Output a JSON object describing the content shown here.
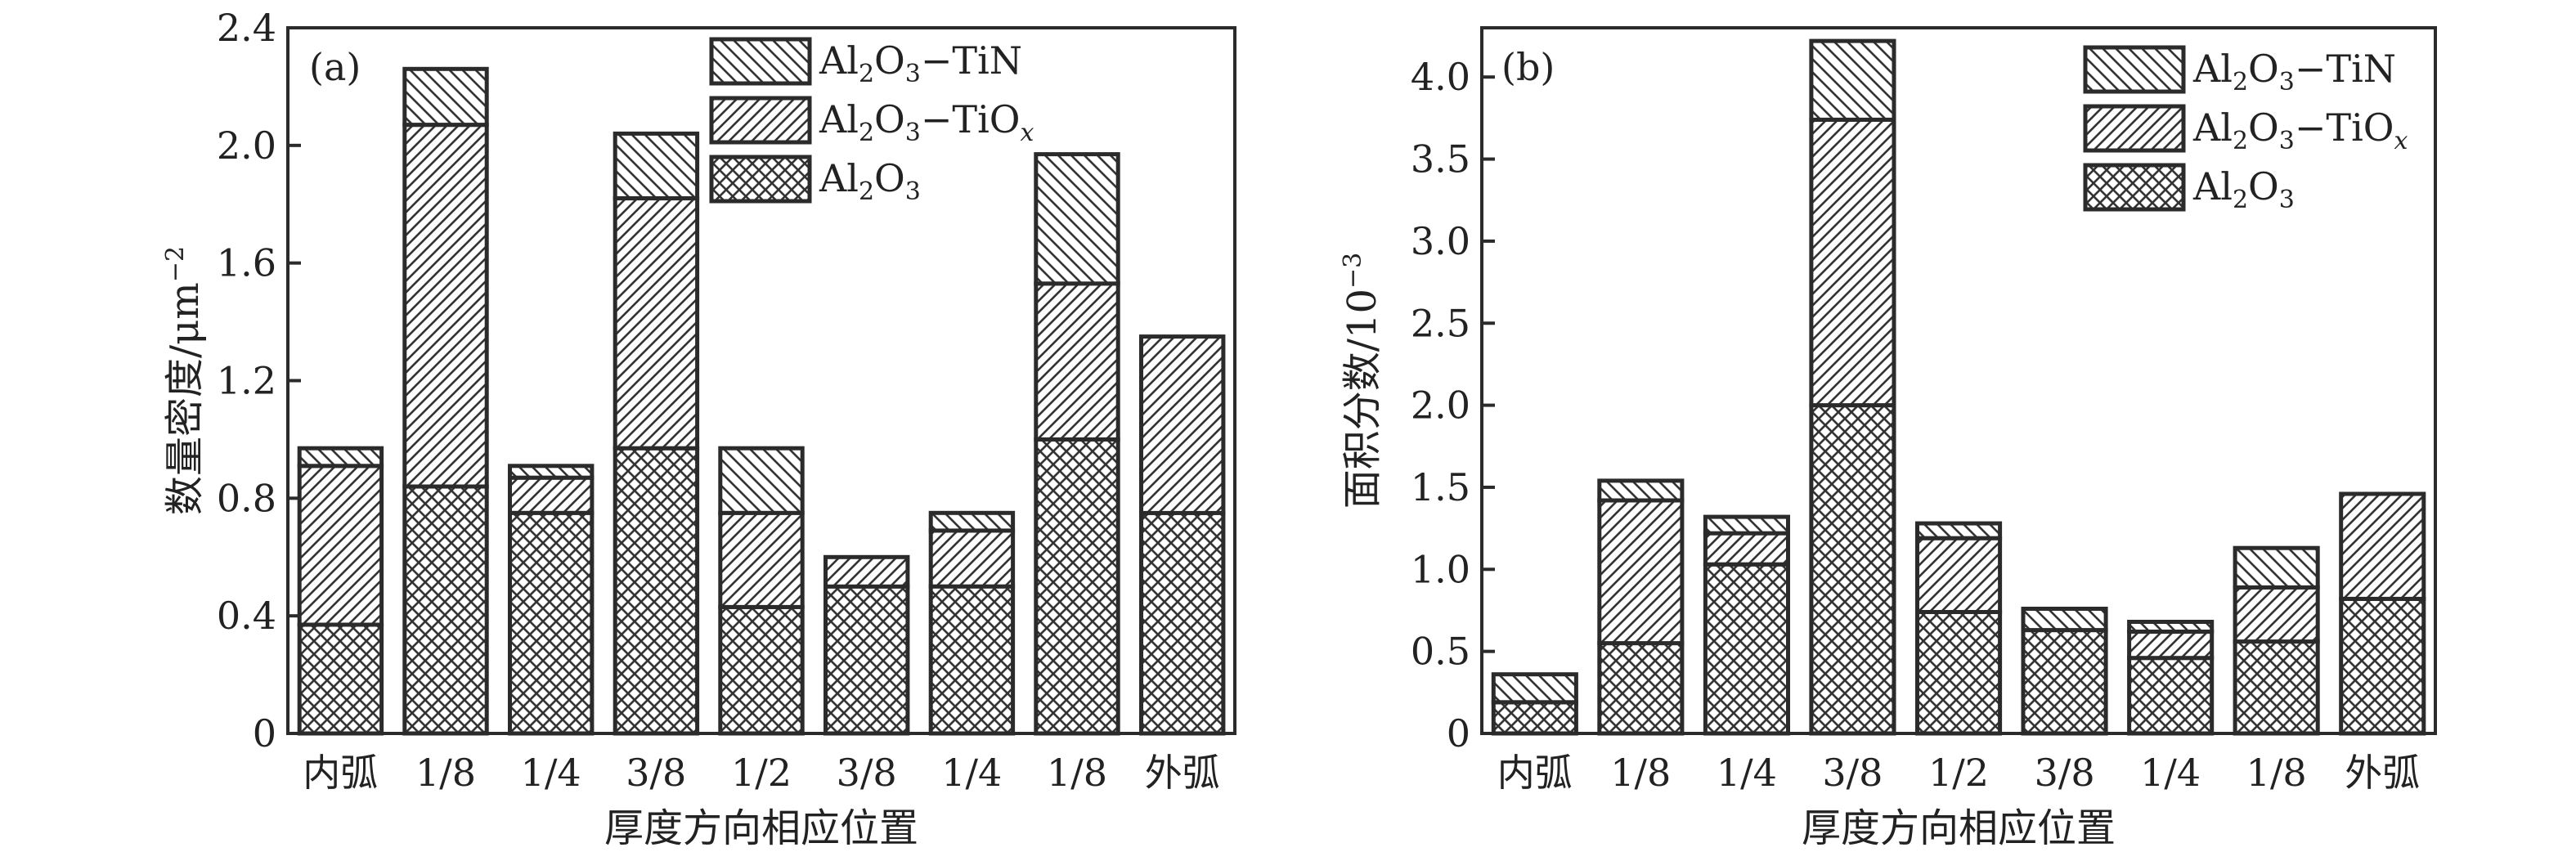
{
  "chart_data": [
    {
      "type": "bar",
      "stacked": true,
      "panel_label": "(a)",
      "xlabel": "厚度方向相应位置",
      "ylabel": "数量密度/μm",
      "ylabel_sup": "−2",
      "categories": [
        "内弧",
        "1/8",
        "1/4",
        "3/8",
        "1/2",
        "3/8",
        "1/4",
        "1/8",
        "外弧"
      ],
      "ylim": [
        0,
        2.4
      ],
      "yticks": [
        "0",
        "0.4",
        "0.8",
        "1.2",
        "1.6",
        "2.0",
        "2.4"
      ],
      "series": [
        {
          "name": "Al2O3",
          "values": [
            0.37,
            0.84,
            0.75,
            0.97,
            0.43,
            0.5,
            0.5,
            1.0,
            0.75
          ]
        },
        {
          "name": "Al2O3−TiOx",
          "values": [
            0.54,
            1.23,
            0.12,
            0.85,
            0.32,
            0.1,
            0.19,
            0.53,
            0.6
          ]
        },
        {
          "name": "Al2O3−TiN",
          "values": [
            0.06,
            0.19,
            0.04,
            0.22,
            0.22,
            0.0,
            0.06,
            0.44,
            0.0
          ]
        }
      ],
      "legend_position": "top-right",
      "grid": false
    },
    {
      "type": "bar",
      "stacked": true,
      "panel_label": "(b)",
      "xlabel": "厚度方向相应位置",
      "ylabel": "面积分数/10",
      "ylabel_sup": "−3",
      "categories": [
        "内弧",
        "1/8",
        "1/4",
        "3/8",
        "1/2",
        "3/8",
        "1/4",
        "1/8",
        "外弧"
      ],
      "ylim": [
        0,
        4.3
      ],
      "yticks": [
        "0",
        "0.5",
        "1.0",
        "1.5",
        "2.0",
        "2.5",
        "3.0",
        "3.5",
        "4.0"
      ],
      "series": [
        {
          "name": "Al2O3",
          "values": [
            0.19,
            0.55,
            1.03,
            2.0,
            0.74,
            0.63,
            0.46,
            0.56,
            0.82
          ]
        },
        {
          "name": "Al2O3−TiOx",
          "values": [
            0.0,
            0.87,
            0.19,
            1.74,
            0.45,
            0.0,
            0.16,
            0.33,
            0.64
          ]
        },
        {
          "name": "Al2O3−TiN",
          "values": [
            0.17,
            0.12,
            0.1,
            0.48,
            0.09,
            0.13,
            0.06,
            0.24,
            0.0
          ]
        }
      ],
      "legend_position": "top-right",
      "grid": false
    }
  ],
  "legend": [
    {
      "key": "tin",
      "parts": [
        [
          "Al",
          false
        ],
        [
          "2",
          true
        ],
        [
          "O",
          false
        ],
        [
          "3",
          true
        ],
        [
          "−TiN",
          false
        ]
      ]
    },
    {
      "key": "tiox",
      "parts": [
        [
          "Al",
          false
        ],
        [
          "2",
          true
        ],
        [
          "O",
          false
        ],
        [
          "3",
          true
        ],
        [
          "−TiO",
          false
        ],
        [
          "x",
          "italic-sub"
        ]
      ]
    },
    {
      "key": "al2o3",
      "parts": [
        [
          "Al",
          false
        ],
        [
          "2",
          true
        ],
        [
          "O",
          false
        ],
        [
          "3",
          true
        ]
      ]
    }
  ],
  "colors": {
    "stroke": "#2b2b2b",
    "fill": "#ffffff",
    "text": "#222222"
  }
}
